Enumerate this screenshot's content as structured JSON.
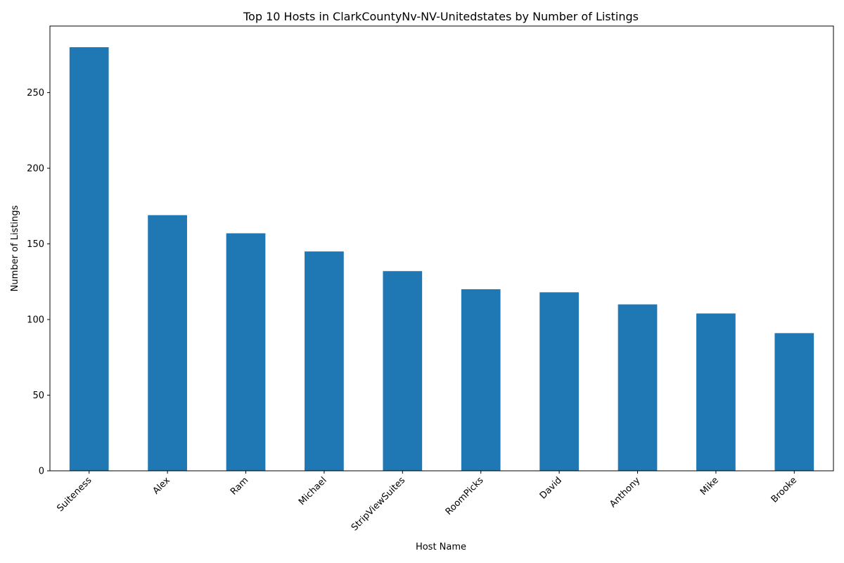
{
  "chart_data": {
    "type": "bar",
    "title": "Top 10 Hosts in ClarkCountyNv-NV-Unitedstates by Number of Listings",
    "xlabel": "Host Name",
    "ylabel": "Number of Listings",
    "categories": [
      "Suiteness",
      "Alex",
      "Ram",
      "Michael",
      "StripViewSuites",
      "RoomPicks",
      "David",
      "Anthony",
      "Mike",
      "Brooke"
    ],
    "values": [
      280,
      169,
      157,
      145,
      132,
      120,
      118,
      110,
      104,
      91
    ],
    "ylim": [
      0,
      294
    ],
    "yticks": [
      0,
      50,
      100,
      150,
      200,
      250
    ],
    "bar_color": "#1f77b4",
    "grid": false,
    "legend": "none"
  }
}
